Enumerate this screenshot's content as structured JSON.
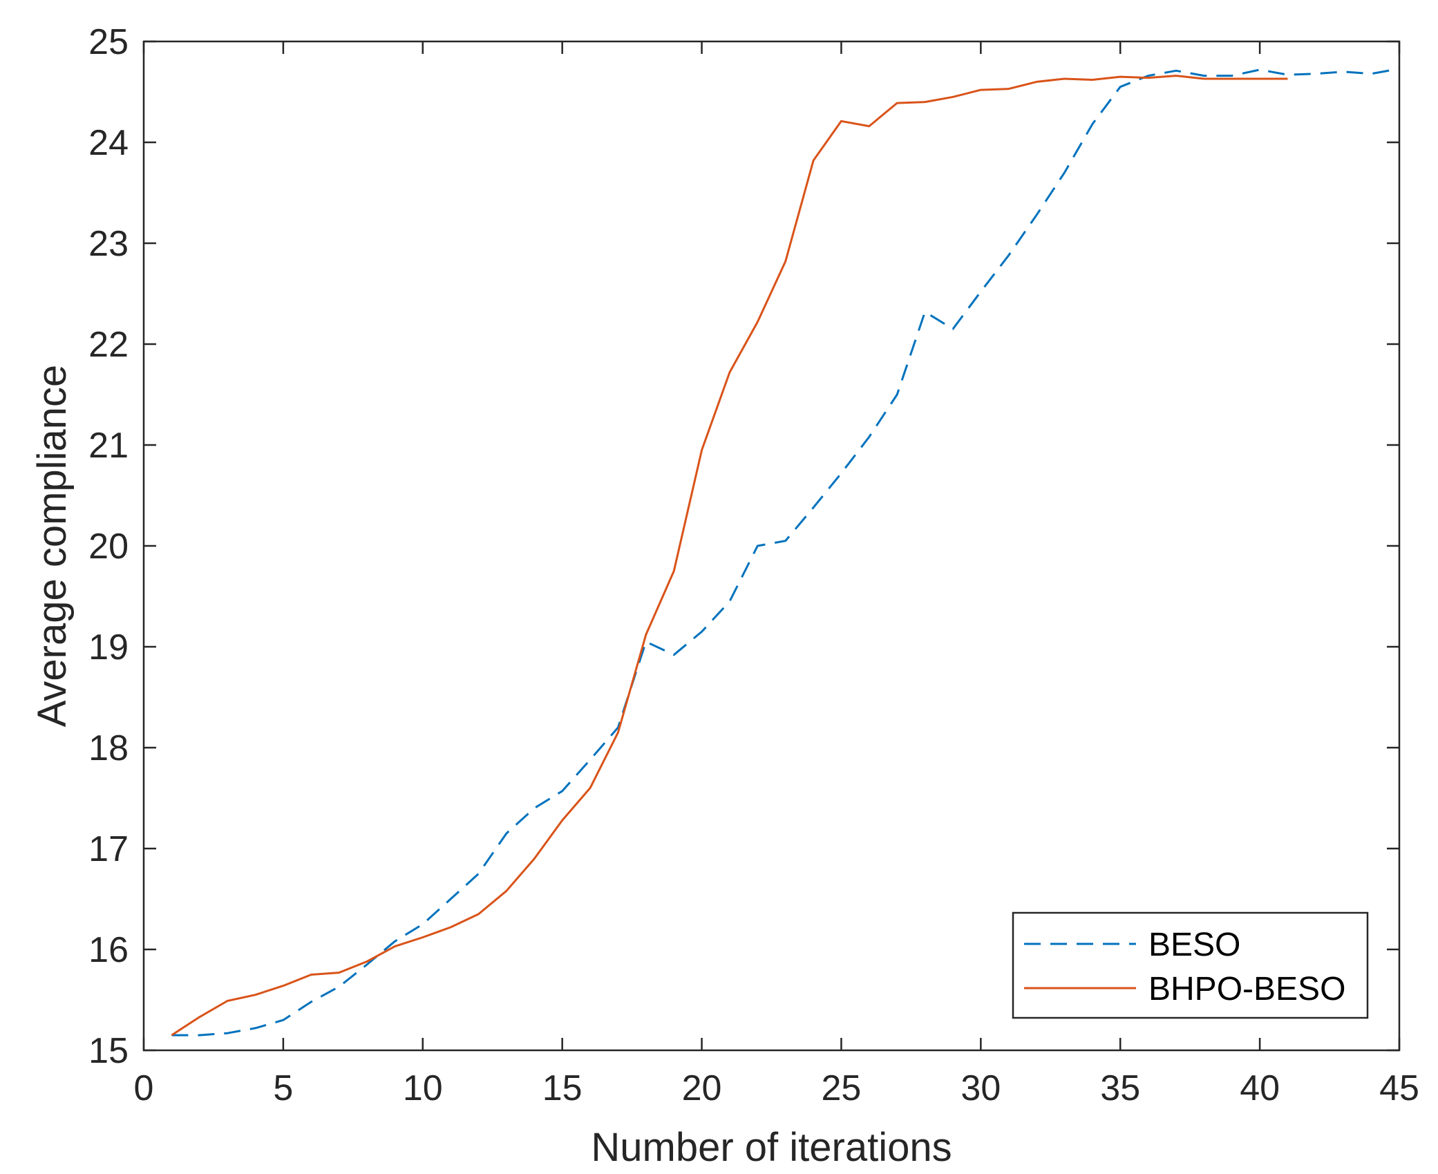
{
  "chart_data": {
    "type": "line",
    "title": "",
    "xlabel": "Number of iterations",
    "ylabel": "Average compliance",
    "xlim": [
      0,
      45
    ],
    "ylim": [
      15,
      25
    ],
    "xticks": [
      "0",
      "5",
      "10",
      "15",
      "20",
      "25",
      "30",
      "35",
      "40",
      "45"
    ],
    "yticks": [
      "15",
      "16",
      "17",
      "18",
      "19",
      "20",
      "21",
      "22",
      "23",
      "24",
      "25"
    ],
    "grid": false,
    "legend_position": "bottom-right",
    "series": [
      {
        "name": "BESO",
        "style": "dashed",
        "color": "#0072BD",
        "x": [
          1,
          2,
          3,
          4,
          5,
          6,
          7,
          8,
          9,
          10,
          11,
          12,
          13,
          14,
          15,
          16,
          17,
          18,
          19,
          20,
          21,
          22,
          23,
          24,
          25,
          26,
          27,
          28,
          29,
          30,
          31,
          32,
          33,
          34,
          35,
          36,
          37,
          38,
          39,
          40,
          41,
          42,
          43,
          44,
          45
        ],
        "y": [
          15.15,
          15.15,
          15.17,
          15.22,
          15.3,
          15.48,
          15.63,
          15.85,
          16.08,
          16.25,
          16.5,
          16.75,
          17.15,
          17.4,
          17.57,
          17.88,
          18.2,
          19.05,
          18.92,
          19.15,
          19.45,
          20.0,
          20.05,
          20.38,
          20.72,
          21.08,
          21.5,
          22.32,
          22.15,
          22.52,
          22.88,
          23.28,
          23.7,
          24.18,
          24.55,
          24.66,
          24.71,
          24.66,
          24.66,
          24.72,
          24.67,
          24.68,
          24.7,
          24.68,
          24.73
        ]
      },
      {
        "name": "BHPO-BESO",
        "style": "solid",
        "color": "#D95319",
        "x": [
          1,
          2,
          3,
          4,
          5,
          6,
          7,
          8,
          9,
          10,
          11,
          12,
          13,
          14,
          15,
          16,
          17,
          18,
          19,
          20,
          21,
          22,
          23,
          24,
          25,
          26,
          27,
          28,
          29,
          30,
          31,
          32,
          33,
          34,
          35,
          36,
          37,
          38,
          39,
          40,
          41
        ],
        "y": [
          15.15,
          15.33,
          15.49,
          15.55,
          15.64,
          15.75,
          15.77,
          15.88,
          16.03,
          16.12,
          16.22,
          16.35,
          16.58,
          16.9,
          17.28,
          17.6,
          18.15,
          19.12,
          19.75,
          20.95,
          21.72,
          22.22,
          22.82,
          23.82,
          24.21,
          24.16,
          24.39,
          24.4,
          24.45,
          24.52,
          24.53,
          24.6,
          24.63,
          24.62,
          24.65,
          24.64,
          24.66,
          24.63,
          24.63,
          24.63,
          24.63
        ]
      }
    ]
  }
}
